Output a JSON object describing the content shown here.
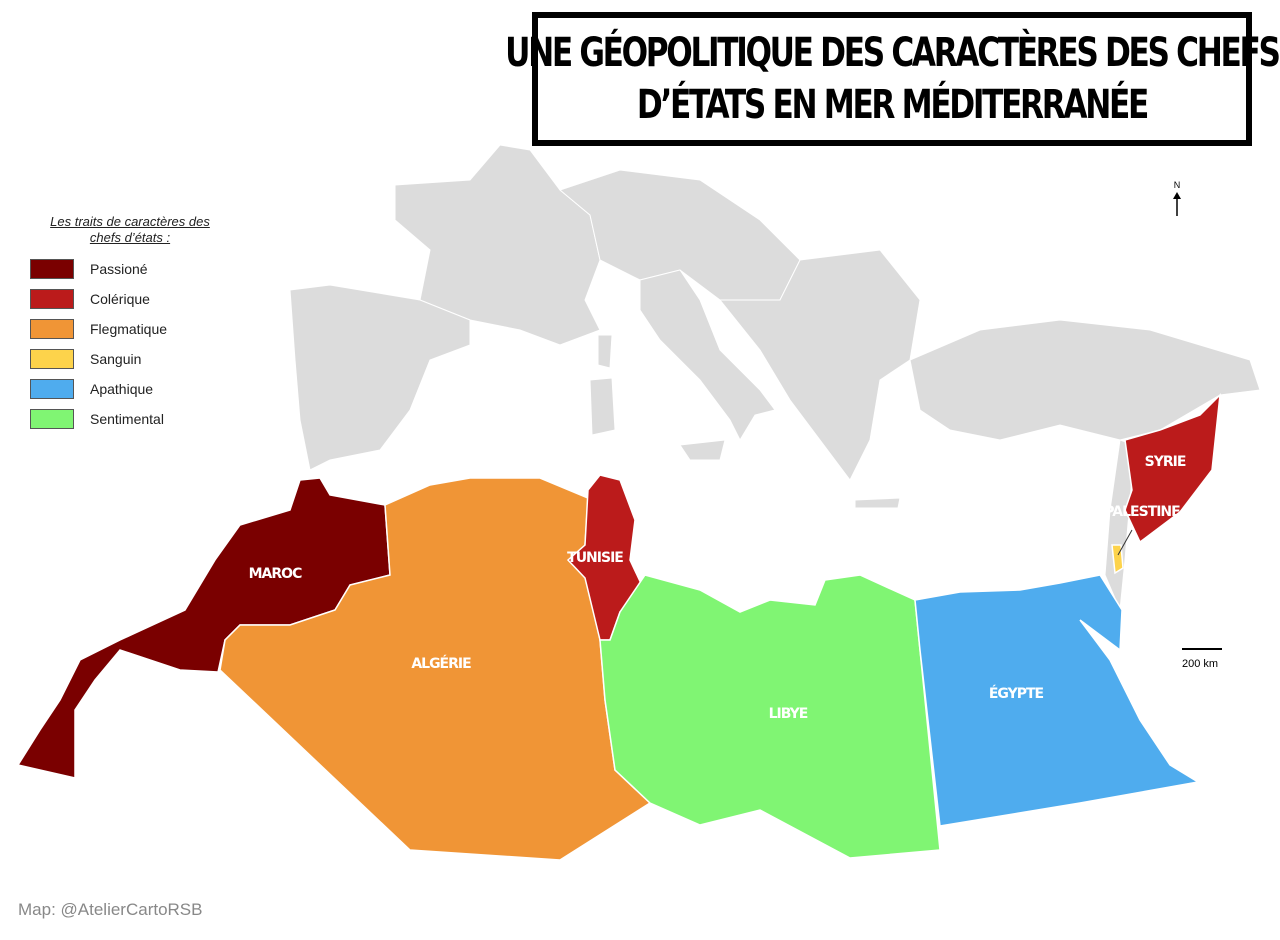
{
  "title": {
    "line1": "UNE GÉOPOLITIQUE DES CARACTÈRES DES CHEFS",
    "line2": "D’ÉTATS EN MER MÉDITERRANÉE"
  },
  "legend": {
    "title_line1": "Les traits de caractères des",
    "title_line2": "chefs d’états :",
    "items": [
      {
        "label": "Passioné",
        "color": "#7a0000"
      },
      {
        "label": "Colérique",
        "color": "#bb1b1b"
      },
      {
        "label": "Flegmatique",
        "color": "#f09536"
      },
      {
        "label": "Sanguin",
        "color": "#fdd34b"
      },
      {
        "label": "Apathique",
        "color": "#4facee"
      },
      {
        "label": "Sentimental",
        "color": "#80f573"
      }
    ]
  },
  "countries": [
    {
      "name": "MAROC",
      "trait": "Passioné"
    },
    {
      "name": "ALGÉRIE",
      "trait": "Flegmatique"
    },
    {
      "name": "TUNISIE",
      "trait": "Colérique"
    },
    {
      "name": "LIBYE",
      "trait": "Sentimental"
    },
    {
      "name": "ÉGYPTE",
      "trait": "Apathique"
    },
    {
      "name": "SYRIE",
      "trait": "Colérique"
    },
    {
      "name": "PALESTINE",
      "trait": "Sanguin"
    }
  ],
  "north_label": "N",
  "scale_label": "200 km",
  "credit": "Map: @AtelierCartoRSB",
  "background_land_color": "#dcdcdc"
}
